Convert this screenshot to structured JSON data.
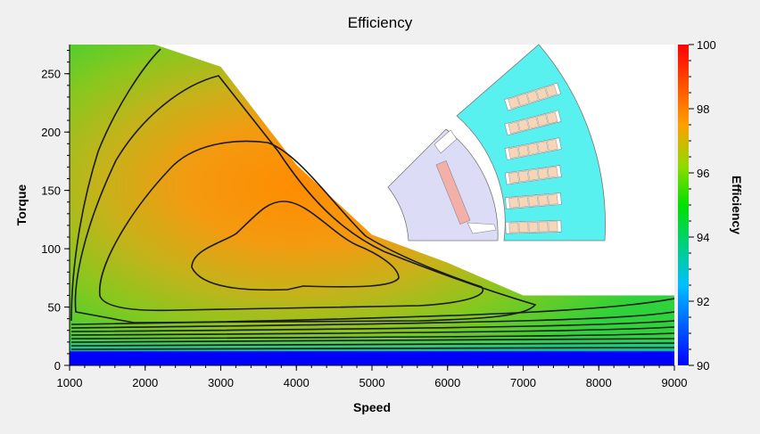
{
  "chart_data": {
    "type": "heatmap",
    "title": "Efficiency",
    "xlabel": "Speed",
    "ylabel": "Torque",
    "colorbar_label": "Efficiency",
    "xlim": [
      1000,
      9000
    ],
    "ylim": [
      0,
      275
    ],
    "clim": [
      90,
      100
    ],
    "x_ticks": [
      "1000",
      "2000",
      "3000",
      "4000",
      "5000",
      "6000",
      "7000",
      "8000",
      "9000"
    ],
    "y_ticks": [
      "0",
      "50",
      "100",
      "150",
      "200",
      "250"
    ],
    "colorbar_ticks": [
      "90",
      "92",
      "94",
      "96",
      "98",
      "100"
    ],
    "max_torque_envelope": [
      {
        "speed": 1000,
        "torque": 280
      },
      {
        "speed": 1900,
        "torque": 280
      },
      {
        "speed": 3000,
        "torque": 256
      },
      {
        "speed": 4000,
        "torque": 172
      },
      {
        "speed": 5000,
        "torque": 112
      },
      {
        "speed": 6000,
        "torque": 88
      },
      {
        "speed": 7000,
        "torque": 60
      },
      {
        "speed": 9000,
        "torque": 60
      }
    ],
    "peak_region": {
      "speed": 3900,
      "torque": 95,
      "efficiency": 97.6
    },
    "contour_levels": [
      91,
      92,
      92.5,
      93,
      93.5,
      94,
      94.5,
      95,
      95.5,
      96,
      96.5,
      97
    ],
    "inset": "motor cross-section (stator slots with windings, rotor with magnet)"
  }
}
